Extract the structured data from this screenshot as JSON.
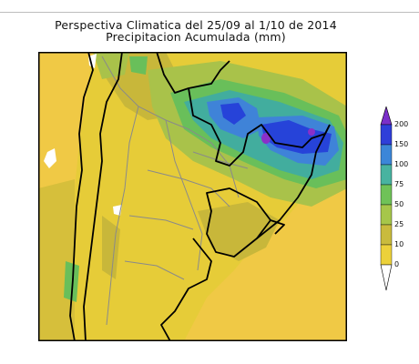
{
  "map": {
    "title_line1": "Perspectiva Climatica del 25/09 al 1/10 de 2014",
    "title_line2": "Precipitacion Acumulada (mm)",
    "region": "southern South America",
    "colors": {
      "ocean": "#f0c945",
      "lt10": "#e6cc38",
      "ge10": "#c8b73a",
      "ge25": "#a9c24a",
      "ge50": "#69bf5a",
      "ge75": "#42ad9e",
      "ge100": "#3f83d8",
      "ge150": "#2643d9",
      "ge200": "#8a2fc9",
      "borders": "#8a8a8a",
      "coast": "#000000",
      "frame": "#000000"
    }
  },
  "legend": {
    "levels": [
      "200",
      "150",
      "100",
      "75",
      "50",
      "25",
      "10",
      "0"
    ],
    "colors": [
      "#7b2fc9",
      "#2f3fd9",
      "#3c86d8",
      "#48b3a0",
      "#6fc258",
      "#a6c64a",
      "#c9bb3d",
      "#ecd13a"
    ]
  }
}
